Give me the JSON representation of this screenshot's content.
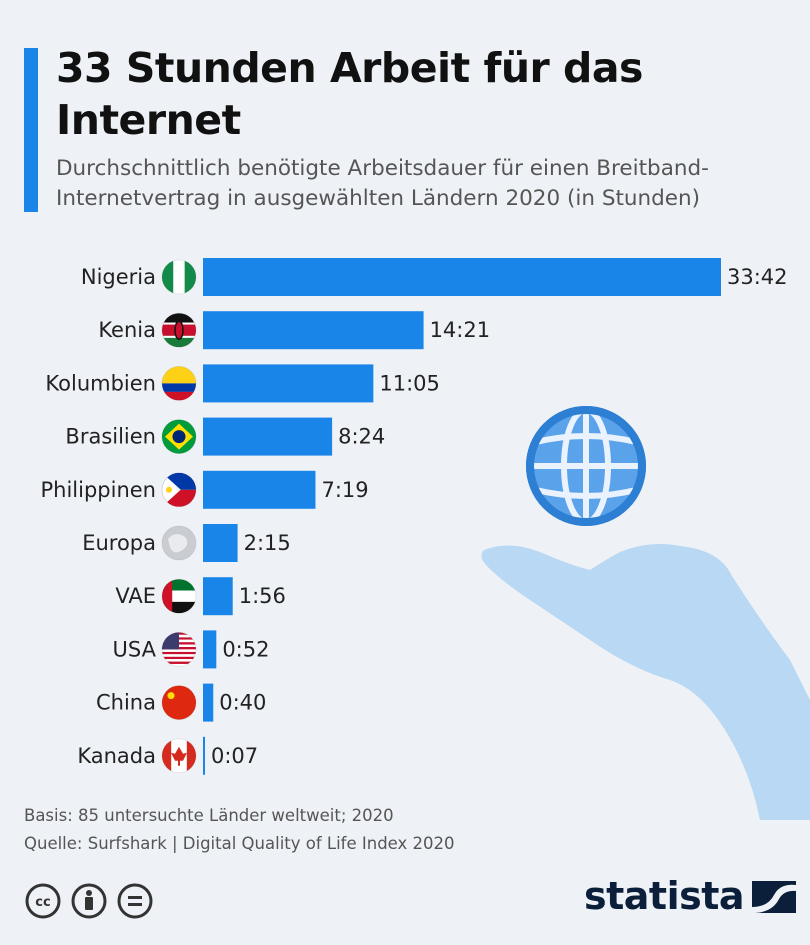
{
  "header": {
    "title": "33 Stunden Arbeit für das Internet",
    "subtitle": "Durchschnittlich benötigte Arbeitsdauer für einen Breitband-Internetvertrag in ausgewählten Ländern 2020 (in Stunden)"
  },
  "colors": {
    "accent": "#1a85e8",
    "background": "#eef2f6",
    "brand": "#0b1f3a"
  },
  "chart_data": {
    "type": "bar",
    "orientation": "horizontal",
    "title": "33 Stunden Arbeit für das Internet",
    "subtitle": "Durchschnittlich benötigte Arbeitsdauer für einen Breitband-Internetvertrag in ausgewählten Ländern 2020 (in Stunden)",
    "categories": [
      "Nigeria",
      "Kenia",
      "Kolumbien",
      "Brasilien",
      "Philippinen",
      "Europa",
      "VAE",
      "USA",
      "China",
      "Kanada"
    ],
    "flag_icons": [
      "nigeria-flag-icon",
      "kenya-flag-icon",
      "colombia-flag-icon",
      "brazil-flag-icon",
      "philippines-flag-icon",
      "europe-globe-icon",
      "uae-flag-icon",
      "usa-flag-icon",
      "china-flag-icon",
      "canada-flag-icon"
    ],
    "value_labels": [
      "33:42",
      "14:21",
      "11:05",
      "8:24",
      "7:19",
      "2:15",
      "1:56",
      "0:52",
      "0:40",
      "0:07"
    ],
    "values": [
      33.7,
      14.35,
      11.083,
      8.4,
      7.317,
      2.25,
      1.933,
      0.867,
      0.667,
      0.117
    ],
    "units": "Stunden",
    "grid": false,
    "bar_color": "#1a85e8"
  },
  "footer": {
    "basis": "Basis: 85 untersuchte Länder weltweit; 2020",
    "source": "Quelle: Surfshark | Digital Quality of Life Index 2020"
  },
  "brand": {
    "name": "statista",
    "icon": "statista-logo-icon"
  },
  "license_icons": [
    "cc-icon",
    "by-icon",
    "nd-icon"
  ]
}
